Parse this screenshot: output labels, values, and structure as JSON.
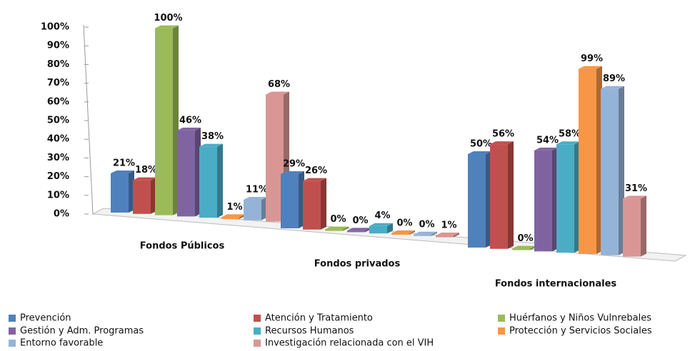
{
  "chart_data": {
    "type": "bar3d",
    "categories": [
      "Fondos Públicos",
      "Fondos privados",
      "Fondos internacionales"
    ],
    "series": [
      {
        "name": "Prevención",
        "color": "#4f81bd",
        "values": [
          21,
          29,
          50
        ],
        "value_labels": [
          "21%",
          "29%",
          "50%"
        ]
      },
      {
        "name": "Atención y Tratamiento",
        "color": "#c0504d",
        "values": [
          18,
          26,
          56
        ],
        "value_labels": [
          "18%",
          "26%",
          "56%"
        ]
      },
      {
        "name": "Huérfanos y Niños Vulnrebales",
        "color": "#9bbb59",
        "values": [
          100,
          0,
          0
        ],
        "value_labels": [
          "100%",
          "0%",
          "0%"
        ]
      },
      {
        "name": "Gestión y Adm. Programas",
        "color": "#8064a2",
        "values": [
          46,
          0,
          54
        ],
        "value_labels": [
          "46%",
          "0%",
          "54%"
        ]
      },
      {
        "name": "Recursos Humanos",
        "color": "#4bacc6",
        "values": [
          38,
          4,
          58
        ],
        "value_labels": [
          "38%",
          "4%",
          "58%"
        ]
      },
      {
        "name": "Protección y Servicios Sociales",
        "color": "#f79646",
        "values": [
          1,
          0,
          99
        ],
        "value_labels": [
          "1%",
          "0%",
          "99%"
        ]
      },
      {
        "name": "Entorno favorable",
        "color": "#95b3d7",
        "values": [
          11,
          0,
          89
        ],
        "value_labels": [
          "11%",
          "0%",
          "89%"
        ]
      },
      {
        "name": "Investigación relacionada con el VIH",
        "color": "#d99694",
        "values": [
          68,
          1,
          31
        ],
        "value_labels": [
          "68%",
          "1%",
          "31%"
        ]
      }
    ],
    "ylim": [
      0,
      100
    ],
    "yticks": [
      {
        "value": 0,
        "label": "0%"
      },
      {
        "value": 10,
        "label": "10%"
      },
      {
        "value": 20,
        "label": "20%"
      },
      {
        "value": 30,
        "label": "30%"
      },
      {
        "value": 40,
        "label": "40%"
      },
      {
        "value": 50,
        "label": "50%"
      },
      {
        "value": 60,
        "label": "60%"
      },
      {
        "value": 70,
        "label": "70%"
      },
      {
        "value": 80,
        "label": "80%"
      },
      {
        "value": 90,
        "label": "90%"
      },
      {
        "value": 100,
        "label": "100%"
      }
    ],
    "legend": "bottom"
  }
}
